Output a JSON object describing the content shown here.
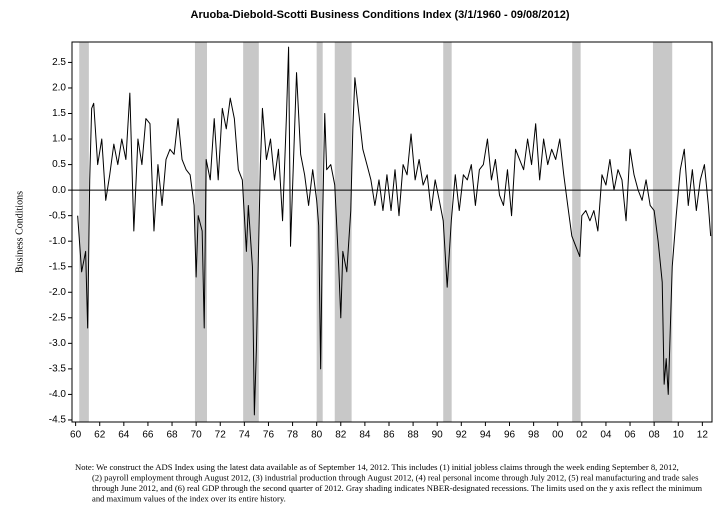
{
  "chart_data": {
    "type": "line",
    "title": "Aruoba-Diebold-Scotti Business Conditions Index (3/1/1960 - 09/08/2012)",
    "y_label": "Business Conditions",
    "note_lines": [
      "Note: We construct the ADS Index using the latest data available as of September 14, 2012. This includes (1) initial jobless claims through the week ending September 8, 2012,",
      "(2) payroll employment through August 2012, (3) industrial production through August 2012, (4) real personal income through July 2012, (5) real manufacturing and trade sales",
      "through June 2012, and (6) real GDP through the second quarter of 2012. Gray shading indicates NBER-designated recessions. The limits used on the y axis reflect the minimum",
      "and maximum values of the index over its entire history."
    ],
    "color": "#000000",
    "recession_color": "#c8c8c8",
    "recessions": [
      [
        1960.3,
        1961.1
      ],
      [
        1969.9,
        1970.9
      ],
      [
        1973.9,
        1975.2
      ],
      [
        1980.0,
        1980.5
      ],
      [
        1981.5,
        1982.9
      ],
      [
        1990.5,
        1991.2
      ],
      [
        2001.2,
        2001.9
      ],
      [
        2007.9,
        2009.5
      ]
    ],
    "x": [
      1960.17,
      1960.5,
      1960.83,
      1961.0,
      1961.17,
      1961.33,
      1961.5,
      1961.83,
      1962.17,
      1962.5,
      1962.83,
      1963.17,
      1963.5,
      1963.83,
      1964.17,
      1964.5,
      1964.83,
      1965.17,
      1965.5,
      1965.83,
      1966.17,
      1966.5,
      1966.83,
      1967.17,
      1967.5,
      1967.83,
      1968.17,
      1968.5,
      1968.83,
      1969.17,
      1969.5,
      1969.83,
      1970.0,
      1970.17,
      1970.5,
      1970.67,
      1970.83,
      1971.17,
      1971.5,
      1971.83,
      1972.17,
      1972.5,
      1972.83,
      1973.17,
      1973.5,
      1973.83,
      1974.0,
      1974.17,
      1974.33,
      1974.67,
      1974.83,
      1975.0,
      1975.33,
      1975.5,
      1975.83,
      1976.17,
      1976.5,
      1976.83,
      1977.17,
      1977.5,
      1977.67,
      1977.83,
      1978.17,
      1978.33,
      1978.67,
      1979.0,
      1979.33,
      1979.67,
      1980.0,
      1980.17,
      1980.33,
      1980.5,
      1980.67,
      1980.83,
      1981.17,
      1981.5,
      1981.83,
      1982.0,
      1982.17,
      1982.5,
      1982.83,
      1983.0,
      1983.17,
      1983.5,
      1983.83,
      1984.17,
      1984.5,
      1984.83,
      1985.17,
      1985.5,
      1985.83,
      1986.17,
      1986.5,
      1986.83,
      1987.17,
      1987.5,
      1987.83,
      1988.17,
      1988.5,
      1988.83,
      1989.17,
      1989.5,
      1989.83,
      1990.17,
      1990.5,
      1990.83,
      1991.17,
      1991.5,
      1991.83,
      1992.17,
      1992.5,
      1992.83,
      1993.17,
      1993.5,
      1993.83,
      1994.17,
      1994.5,
      1994.83,
      1995.17,
      1995.5,
      1995.83,
      1996.17,
      1996.5,
      1996.83,
      1997.17,
      1997.5,
      1997.83,
      1998.17,
      1998.5,
      1998.83,
      1999.17,
      1999.5,
      1999.83,
      2000.17,
      2000.5,
      2000.83,
      2001.17,
      2001.5,
      2001.83,
      2002.0,
      2002.33,
      2002.67,
      2003.0,
      2003.33,
      2003.67,
      2004.0,
      2004.33,
      2004.67,
      2005.0,
      2005.33,
      2005.67,
      2006.0,
      2006.33,
      2006.67,
      2007.0,
      2007.33,
      2007.67,
      2008.0,
      2008.33,
      2008.67,
      2008.83,
      2009.0,
      2009.17,
      2009.5,
      2009.83,
      2010.17,
      2010.5,
      2010.83,
      2011.17,
      2011.5,
      2011.83,
      2012.17,
      2012.5,
      2012.69
    ],
    "values": [
      -0.5,
      -1.6,
      -1.2,
      -2.7,
      0.2,
      1.6,
      1.7,
      0.5,
      1.0,
      -0.2,
      0.3,
      0.9,
      0.5,
      1.0,
      0.6,
      1.9,
      -0.8,
      1.0,
      0.5,
      1.4,
      1.3,
      -0.8,
      0.5,
      -0.3,
      0.6,
      0.8,
      0.7,
      1.4,
      0.6,
      0.4,
      0.3,
      -0.3,
      -1.7,
      -0.5,
      -0.8,
      -2.7,
      0.6,
      0.2,
      1.4,
      0.2,
      1.6,
      1.2,
      1.8,
      1.4,
      0.4,
      0.2,
      -0.5,
      -1.2,
      -0.3,
      -1.5,
      -4.4,
      -3.1,
      0.5,
      1.6,
      0.6,
      1.0,
      0.2,
      0.8,
      -0.6,
      1.5,
      2.8,
      -1.1,
      1.2,
      2.3,
      0.7,
      0.3,
      -0.3,
      0.4,
      -0.2,
      -0.7,
      -3.5,
      -0.5,
      1.5,
      0.4,
      0.5,
      0.1,
      -1.5,
      -2.5,
      -1.2,
      -1.6,
      -0.4,
      1.2,
      2.2,
      1.5,
      0.8,
      0.5,
      0.2,
      -0.3,
      0.2,
      -0.4,
      0.3,
      -0.4,
      0.4,
      -0.5,
      0.5,
      0.3,
      1.1,
      0.2,
      0.6,
      0.1,
      0.3,
      -0.4,
      0.2,
      -0.2,
      -0.6,
      -1.9,
      -0.6,
      0.3,
      -0.4,
      0.3,
      0.2,
      0.5,
      -0.3,
      0.4,
      0.5,
      1.0,
      0.2,
      0.6,
      -0.1,
      -0.3,
      0.4,
      -0.5,
      0.8,
      0.6,
      0.4,
      1.0,
      0.5,
      1.3,
      0.2,
      1.0,
      0.5,
      0.8,
      0.6,
      1.0,
      0.3,
      -0.3,
      -0.9,
      -1.1,
      -1.3,
      -0.5,
      -0.4,
      -0.6,
      -0.4,
      -0.8,
      0.3,
      0.1,
      0.6,
      0.0,
      0.4,
      0.2,
      -0.6,
      0.8,
      0.3,
      0.0,
      -0.2,
      0.2,
      -0.3,
      -0.4,
      -1.0,
      -1.8,
      -3.8,
      -3.3,
      -4.0,
      -1.5,
      -0.5,
      0.4,
      0.8,
      -0.3,
      0.4,
      -0.4,
      0.2,
      0.5,
      -0.3,
      -0.9
    ],
    "xlim": [
      1959.7,
      2012.8
    ],
    "ylim": [
      -4.54,
      2.9
    ],
    "xticks": [
      {
        "value": 1960,
        "label": "60"
      },
      {
        "value": 1962,
        "label": "62"
      },
      {
        "value": 1964,
        "label": "64"
      },
      {
        "value": 1966,
        "label": "66"
      },
      {
        "value": 1968,
        "label": "68"
      },
      {
        "value": 1970,
        "label": "70"
      },
      {
        "value": 1972,
        "label": "72"
      },
      {
        "value": 1974,
        "label": "74"
      },
      {
        "value": 1976,
        "label": "76"
      },
      {
        "value": 1978,
        "label": "78"
      },
      {
        "value": 1980,
        "label": "80"
      },
      {
        "value": 1982,
        "label": "82"
      },
      {
        "value": 1984,
        "label": "84"
      },
      {
        "value": 1986,
        "label": "86"
      },
      {
        "value": 1988,
        "label": "88"
      },
      {
        "value": 1990,
        "label": "90"
      },
      {
        "value": 1992,
        "label": "92"
      },
      {
        "value": 1994,
        "label": "94"
      },
      {
        "value": 1996,
        "label": "96"
      },
      {
        "value": 1998,
        "label": "98"
      },
      {
        "value": 2000,
        "label": "00"
      },
      {
        "value": 2002,
        "label": "02"
      },
      {
        "value": 2004,
        "label": "04"
      },
      {
        "value": 2006,
        "label": "06"
      },
      {
        "value": 2008,
        "label": "08"
      },
      {
        "value": 2010,
        "label": "10"
      },
      {
        "value": 2012,
        "label": "12"
      }
    ],
    "yticks": [
      2.5,
      {
        "value": 2,
        "label": "2.0"
      },
      1.5,
      {
        "value": 1,
        "label": "1.0"
      },
      0.5,
      {
        "value": 0,
        "label": "0.0"
      },
      -0.5,
      {
        "value": -1,
        "label": "-1.0"
      },
      -1.5,
      {
        "value": -2,
        "label": "-2.0"
      },
      -2.5,
      {
        "value": -3,
        "label": "-3.0"
      },
      -3.5,
      {
        "value": -4,
        "label": "-4.0"
      },
      -4.5
    ]
  }
}
